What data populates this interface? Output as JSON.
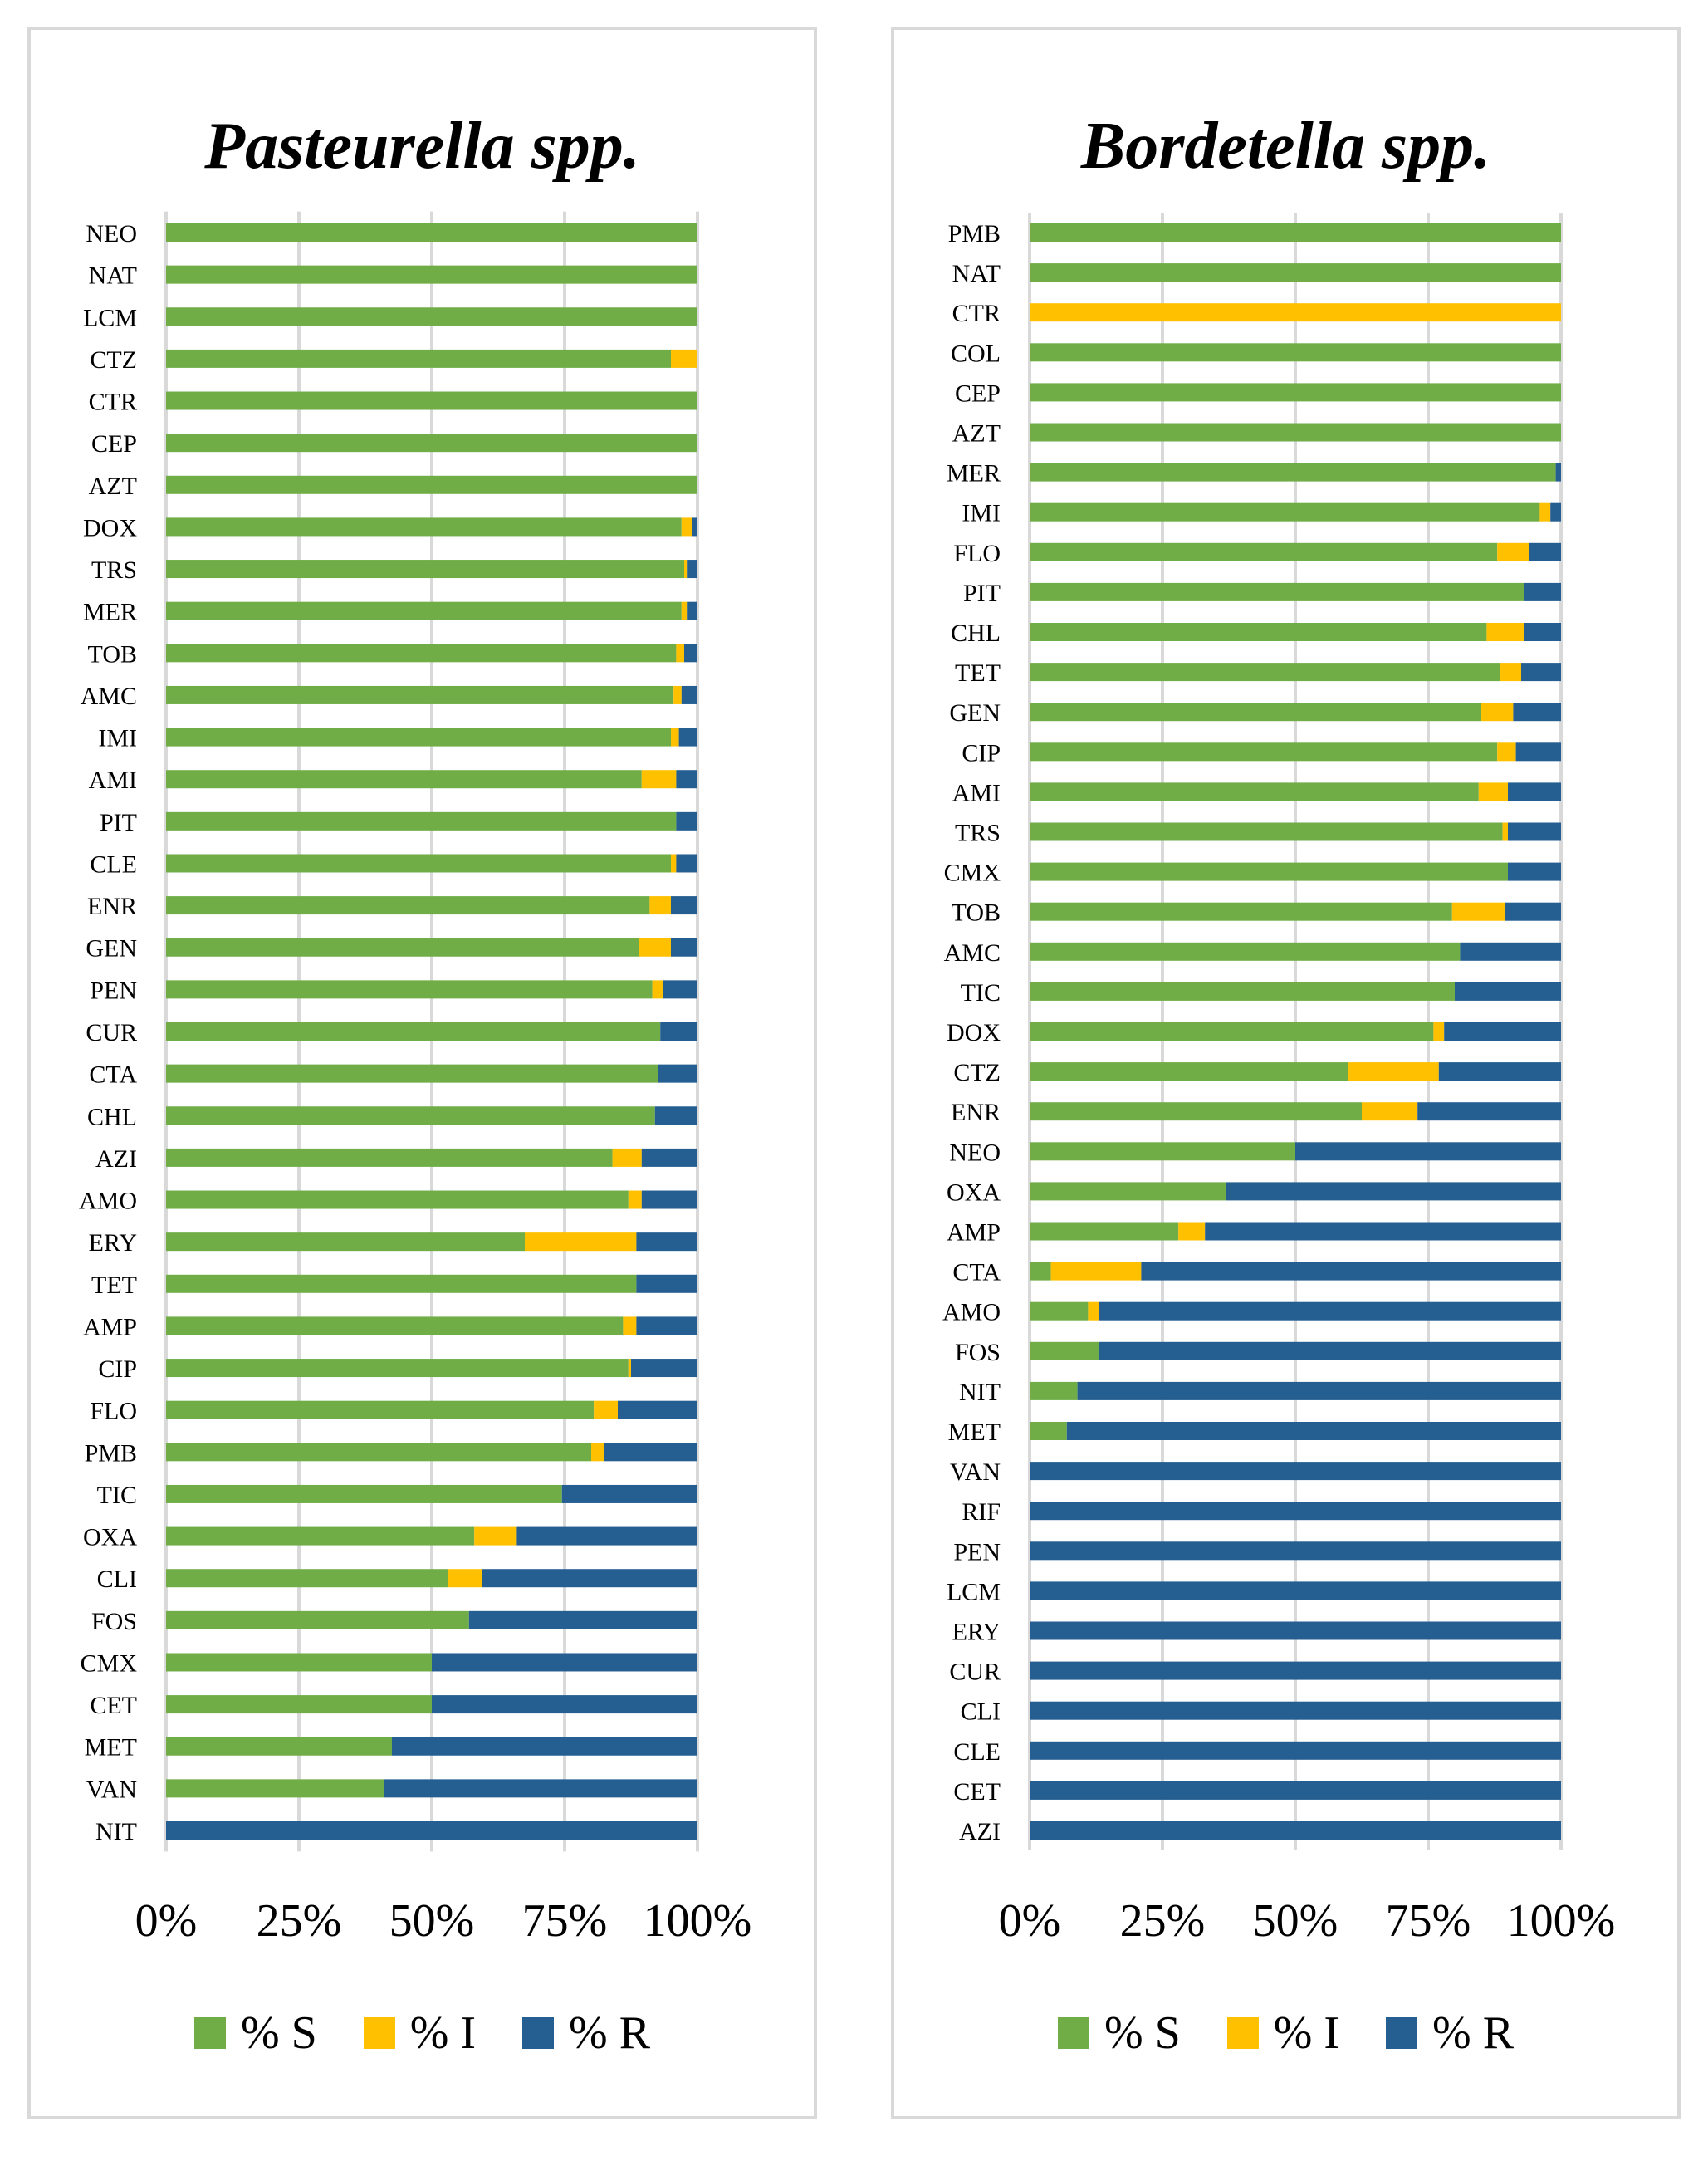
{
  "chart_data": [
    {
      "type": "bar",
      "orientation": "horizontal",
      "stacked": "percent",
      "title": "Pasteurella spp.",
      "categories": [
        "NEO",
        "NAT",
        "LCM",
        "CTZ",
        "CTR",
        "CEP",
        "AZT",
        "DOX",
        "TRS",
        "MER",
        "TOB",
        "AMC",
        "IMI",
        "AMI",
        "PIT",
        "CLE",
        "ENR",
        "GEN",
        "PEN",
        "CUR",
        "CTA",
        "CHL",
        "AZI",
        "AMO",
        "ERY",
        "TET",
        "AMP",
        "CIP",
        "FLO",
        "PMB",
        "TIC",
        "OXA",
        "CLI",
        "FOS",
        "CMX",
        "CET",
        "MET",
        "VAN",
        "NIT"
      ],
      "series": [
        {
          "name": "% S",
          "color": "#70ad47",
          "values": [
            100,
            100,
            100,
            95,
            100,
            100,
            100,
            97,
            97.5,
            97,
            96,
            95.5,
            95,
            89.5,
            96,
            95,
            91,
            89,
            91.5,
            93,
            92.5,
            92,
            84,
            87,
            67.5,
            88.5,
            86,
            87,
            80.5,
            80,
            74.5,
            58,
            53,
            57,
            50,
            50,
            42.5,
            41,
            0
          ]
        },
        {
          "name": "% I",
          "color": "#ffc000",
          "values": [
            0,
            0,
            0,
            5,
            0,
            0,
            0,
            2,
            0.5,
            1,
            1.5,
            1.5,
            1.5,
            6.5,
            0,
            1,
            4,
            6,
            2,
            0,
            0,
            0,
            5.5,
            2.5,
            21,
            0,
            2.5,
            0.5,
            4.5,
            2.5,
            0,
            8,
            6.5,
            0,
            0,
            0,
            0,
            0,
            0
          ]
        },
        {
          "name": "% R",
          "color": "#255e91",
          "values": [
            0,
            0,
            0,
            0,
            0,
            0,
            0,
            1,
            2,
            2,
            2.5,
            3,
            3.5,
            4,
            4,
            4,
            5,
            5,
            6.5,
            7,
            7.5,
            8,
            10.5,
            10.5,
            11.5,
            11.5,
            11.5,
            12.5,
            15,
            17.5,
            25.5,
            34,
            40.5,
            43,
            50,
            50,
            57.5,
            59,
            100
          ]
        }
      ],
      "xlim": [
        0,
        100
      ],
      "xticks": [
        "0%",
        "25%",
        "50%",
        "75%",
        "100%"
      ],
      "grid": "vertical",
      "legend": "bottom"
    },
    {
      "type": "bar",
      "orientation": "horizontal",
      "stacked": "percent",
      "title": "Bordetella spp.",
      "categories": [
        "PMB",
        "NAT",
        "CTR",
        "COL",
        "CEP",
        "AZT",
        "MER",
        "IMI",
        "FLO",
        "PIT",
        "CHL",
        "TET",
        "GEN",
        "CIP",
        "AMI",
        "TRS",
        "CMX",
        "TOB",
        "AMC",
        "TIC",
        "DOX",
        "CTZ",
        "ENR",
        "NEO",
        "OXA",
        "AMP",
        "CTA",
        "AMO",
        "FOS",
        "NIT",
        "MET",
        "VAN",
        "RIF",
        "PEN",
        "LCM",
        "ERY",
        "CUR",
        "CLI",
        "CLE",
        "CET",
        "AZI"
      ],
      "series": [
        {
          "name": "% S",
          "color": "#70ad47",
          "values": [
            100,
            100,
            0,
            100,
            100,
            100,
            99,
            96,
            88,
            93,
            86,
            88.5,
            85,
            88,
            84.5,
            89,
            90,
            79.5,
            81,
            80,
            76,
            60,
            62.5,
            50,
            37,
            28,
            4,
            11,
            13,
            9,
            7,
            0,
            0,
            0,
            0,
            0,
            0,
            0,
            0,
            0,
            0
          ]
        },
        {
          "name": "% I",
          "color": "#ffc000",
          "values": [
            0,
            0,
            100,
            0,
            0,
            0,
            0,
            2,
            6,
            0,
            7,
            4,
            6,
            3.5,
            5.5,
            1,
            0,
            10,
            0,
            0,
            2,
            17,
            10.5,
            0,
            0,
            5,
            17,
            2,
            0,
            0,
            0,
            0,
            0,
            0,
            0,
            0,
            0,
            0,
            0,
            0,
            0
          ]
        },
        {
          "name": "% R",
          "color": "#255e91",
          "values": [
            0,
            0,
            0,
            0,
            0,
            0,
            1,
            2,
            6,
            7,
            7,
            7.5,
            9,
            8.5,
            10,
            10,
            10,
            10.5,
            19,
            20,
            22,
            23,
            27,
            50,
            63,
            67,
            79,
            87,
            87,
            91,
            93,
            100,
            100,
            100,
            100,
            100,
            100,
            100,
            100,
            100,
            100
          ]
        }
      ],
      "xlim": [
        0,
        100
      ],
      "xticks": [
        "0%",
        "25%",
        "50%",
        "75%",
        "100%"
      ],
      "grid": "vertical",
      "legend": "bottom"
    }
  ]
}
